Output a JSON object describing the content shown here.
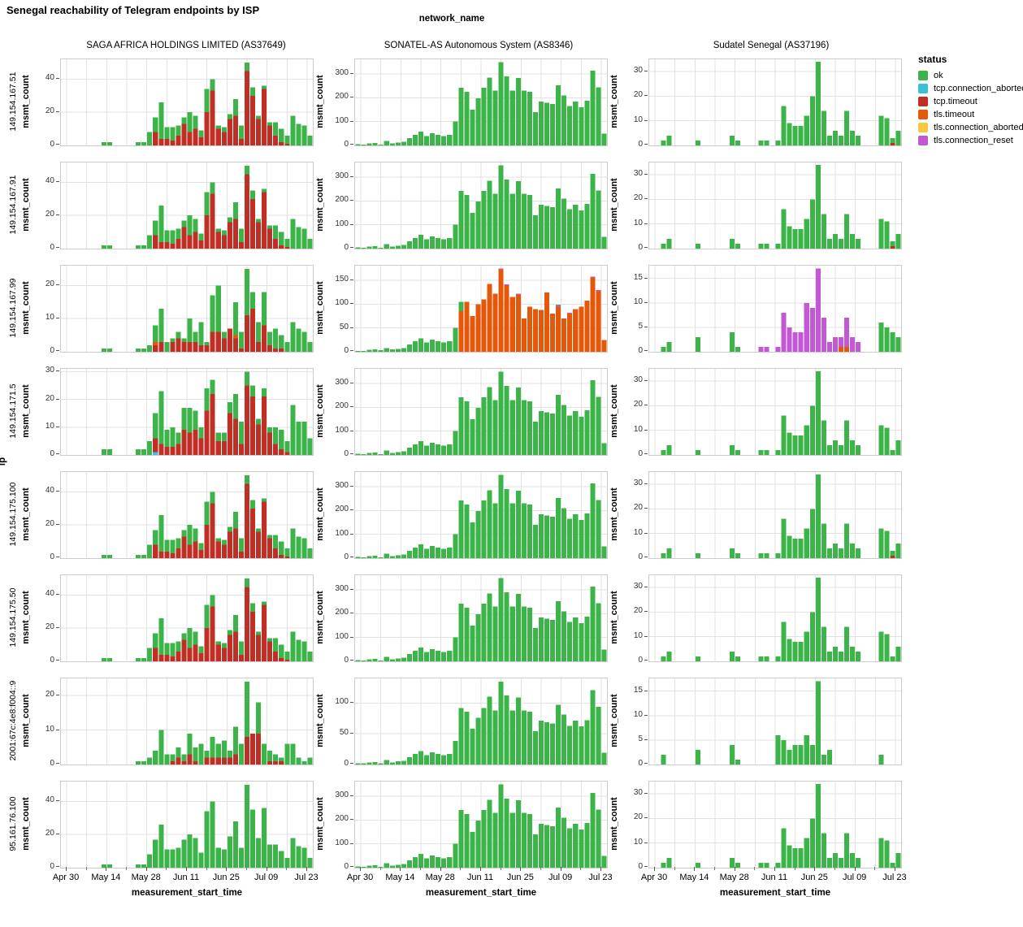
{
  "title": "Senegal reachability of Telegram endpoints by ISP",
  "outer": {
    "x_title": "network_name",
    "y_title": "ip"
  },
  "columns": [
    "SAGA AFRICA HOLDINGS LIMITED (AS37649)",
    "SONATEL-AS Autonomous System (AS8346)",
    "Sudatel Senegal (AS37196)"
  ],
  "rows": [
    "149.154.167.51",
    "149.154.167.91",
    "149.154.167.99",
    "149.154.171.5",
    "149.154.175.100",
    "149.154.175.50",
    "2001:67c:4e8:f004::9",
    "95.161.76.100"
  ],
  "x_ticks": [
    "Apr 30",
    "May 14",
    "May 28",
    "Jun 11",
    "Jun 25",
    "Jul 09",
    "Jul 23"
  ],
  "legend": {
    "title": "status",
    "items": [
      {
        "key": "ok",
        "label": "ok",
        "color": "#3cb44a"
      },
      {
        "key": "tcp_connection_aborted",
        "label": "tcp.connection_aborted",
        "color": "#3bc0d9"
      },
      {
        "key": "tcp_timeout",
        "label": "tcp.timeout",
        "color": "#bf2f26"
      },
      {
        "key": "tls_timeout",
        "label": "tls.timeout",
        "color": "#e55709"
      },
      {
        "key": "tls_connection_aborted",
        "label": "tls.connection_aborted",
        "color": "#fcc63c"
      },
      {
        "key": "tls_connection_reset",
        "label": "tls.connection_reset",
        "color": "#c258d3"
      }
    ]
  },
  "chart_data": {
    "type": "bar",
    "stacked": true,
    "x_axis_label": "measurement_start_time",
    "y_axis_label": "msmt_count",
    "n_bins": 44,
    "bin_days": 2,
    "span_days": 88,
    "bin_start": "Apr 28",
    "stack_order": [
      "tcp_connection_aborted",
      "tcp_timeout",
      "tls_timeout",
      "tls_connection_aborted",
      "tls_connection_reset",
      "ok"
    ],
    "x_grid_days": [
      2,
      9,
      16,
      23,
      30,
      37,
      44,
      51,
      58,
      65,
      72,
      79,
      86
    ],
    "x_tick_days": [
      2,
      16,
      30,
      44,
      58,
      72,
      86
    ],
    "x_minor_days": [
      9,
      23,
      37,
      51,
      65,
      79
    ],
    "profiles": {
      "saga_ok": [
        0,
        0,
        0,
        0,
        0,
        0,
        0,
        2,
        2,
        0,
        0,
        0,
        0,
        2,
        2,
        8,
        9,
        22,
        7,
        8,
        6,
        4,
        12,
        8,
        4,
        14,
        7,
        2,
        3,
        3,
        10,
        8,
        5,
        5,
        2,
        2,
        2,
        8,
        8,
        5,
        18,
        13,
        12,
        6
      ],
      "saga_tcp_timeout": [
        0,
        0,
        0,
        0,
        0,
        0,
        0,
        0,
        0,
        0,
        0,
        0,
        0,
        0,
        0,
        0,
        8,
        4,
        4,
        3,
        6,
        13,
        8,
        10,
        5,
        20,
        33,
        10,
        8,
        16,
        18,
        4,
        45,
        30,
        16,
        34,
        12,
        6,
        2,
        1,
        0,
        0,
        0,
        0
      ],
      "saga_all_ok": [
        0,
        0,
        0,
        0,
        0,
        0,
        0,
        2,
        2,
        0,
        0,
        0,
        0,
        2,
        2,
        8,
        17,
        26,
        11,
        11,
        12,
        17,
        20,
        18,
        9,
        34,
        40,
        12,
        11,
        19,
        28,
        12,
        50,
        35,
        18,
        36,
        14,
        14,
        10,
        6,
        18,
        13,
        12,
        6
      ],
      "saga4_ok": [
        0,
        0,
        0,
        0,
        0,
        0,
        0,
        2,
        2,
        0,
        0,
        0,
        0,
        2,
        2,
        5,
        9,
        19,
        6,
        7,
        4,
        8,
        9,
        7,
        4,
        8,
        5,
        3,
        3,
        4,
        9,
        8,
        5,
        4,
        2,
        3,
        2,
        6,
        7,
        4,
        18,
        12,
        12,
        6
      ],
      "saga4_tcp_timeout": [
        0,
        0,
        0,
        0,
        0,
        0,
        0,
        0,
        0,
        0,
        0,
        0,
        0,
        0,
        0,
        0,
        5,
        4,
        3,
        3,
        4,
        9,
        8,
        9,
        6,
        16,
        22,
        5,
        5,
        15,
        13,
        4,
        25,
        21,
        11,
        21,
        8,
        4,
        2,
        1,
        0,
        0,
        0,
        0
      ],
      "saga4_tcp_aborted": [
        0,
        0,
        0,
        0,
        0,
        0,
        0,
        0,
        0,
        0,
        0,
        0,
        0,
        0,
        0,
        0,
        1,
        0,
        0,
        0,
        0,
        0,
        0,
        0,
        0,
        0,
        0,
        0,
        0,
        0,
        0,
        0,
        0,
        0,
        0,
        0,
        0,
        0,
        0,
        0,
        0,
        0,
        0,
        0
      ],
      "saga3_ok": [
        0,
        0,
        0,
        0,
        0,
        0,
        0,
        1,
        1,
        0,
        0,
        0,
        0,
        1,
        1,
        2,
        5,
        10,
        3,
        1,
        2,
        1,
        7,
        3,
        7,
        1,
        11,
        14,
        2,
        0,
        10,
        5,
        14,
        5,
        6,
        10,
        4,
        6,
        4,
        3,
        9,
        7,
        6,
        3
      ],
      "saga3_tcp_timeout": [
        0,
        0,
        0,
        0,
        0,
        0,
        0,
        0,
        0,
        0,
        0,
        0,
        0,
        0,
        0,
        0,
        2,
        3,
        0,
        3,
        4,
        3,
        3,
        3,
        2,
        2,
        6,
        6,
        4,
        7,
        4,
        1,
        11,
        13,
        3,
        8,
        2,
        1,
        1,
        0,
        0,
        0,
        0,
        0
      ],
      "saga3_tls_timeout": [
        0,
        0,
        0,
        0,
        0,
        0,
        0,
        0,
        0,
        0,
        0,
        0,
        0,
        0,
        0,
        0,
        1,
        0,
        0,
        0,
        0,
        0,
        0,
        0,
        0,
        0,
        0,
        0,
        0,
        0,
        1,
        0,
        0,
        0,
        0,
        0,
        0,
        0,
        0,
        0,
        0,
        0,
        0,
        0
      ],
      "saga7_ok": [
        0,
        0,
        0,
        0,
        0,
        0,
        0,
        0,
        0,
        0,
        0,
        0,
        0,
        1,
        1,
        2,
        4,
        10,
        3,
        2,
        3,
        2,
        6,
        4,
        6,
        2,
        6,
        4,
        5,
        2,
        8,
        6,
        16,
        0,
        9,
        6,
        3,
        2,
        1,
        6,
        6,
        2,
        1,
        2
      ],
      "saga7_tcp_timeout": [
        0,
        0,
        0,
        0,
        0,
        0,
        0,
        0,
        0,
        0,
        0,
        0,
        0,
        0,
        0,
        0,
        0,
        0,
        0,
        1,
        2,
        1,
        3,
        1,
        0,
        2,
        2,
        2,
        2,
        2,
        3,
        0,
        8,
        9,
        9,
        0,
        1,
        1,
        1,
        0,
        0,
        0,
        0,
        0
      ],
      "sonatel_ok": [
        5,
        4,
        8,
        10,
        4,
        18,
        8,
        12,
        15,
        30,
        45,
        58,
        40,
        52,
        45,
        40,
        45,
        100,
        242,
        225,
        150,
        198,
        242,
        285,
        230,
        350,
        290,
        230,
        283,
        230,
        225,
        140,
        185,
        180,
        175,
        253,
        210,
        165,
        185,
        160,
        188,
        315,
        245,
        50
      ],
      "sonatel7_ok": [
        2,
        2,
        3,
        4,
        2,
        7,
        3,
        5,
        6,
        12,
        17,
        22,
        15,
        20,
        17,
        15,
        17,
        38,
        92,
        86,
        58,
        76,
        92,
        110,
        88,
        135,
        112,
        88,
        109,
        88,
        86,
        54,
        71,
        69,
        67,
        97,
        81,
        63,
        71,
        62,
        72,
        121,
        94,
        19
      ],
      "sonatel3_ok": [
        2,
        2,
        4,
        5,
        3,
        8,
        5,
        6,
        8,
        15,
        22,
        28,
        20,
        26,
        22,
        20,
        22,
        50,
        20,
        0,
        0,
        0,
        0,
        0,
        0,
        0,
        0,
        0,
        0,
        0,
        0,
        0,
        0,
        0,
        0,
        2,
        0,
        0,
        0,
        0,
        0,
        0,
        0,
        0
      ],
      "sonatel3_tls_timeout": [
        0,
        0,
        0,
        0,
        0,
        0,
        0,
        0,
        0,
        0,
        0,
        0,
        0,
        0,
        0,
        0,
        0,
        0,
        85,
        105,
        75,
        100,
        110,
        143,
        122,
        173,
        140,
        115,
        120,
        70,
        95,
        90,
        88,
        125,
        80,
        95,
        70,
        80,
        90,
        95,
        108,
        156,
        128,
        25
      ],
      "sonatel3_tls_reset": [
        0,
        0,
        0,
        0,
        0,
        0,
        0,
        0,
        0,
        0,
        0,
        0,
        0,
        0,
        0,
        0,
        0,
        0,
        0,
        0,
        0,
        0,
        0,
        0,
        0,
        2,
        2,
        0,
        2,
        0,
        0,
        0,
        0,
        0,
        0,
        2,
        0,
        2,
        0,
        0,
        0,
        2,
        2,
        0
      ],
      "sudatel_ok": [
        0,
        0,
        2,
        4,
        0,
        0,
        0,
        0,
        2,
        0,
        0,
        0,
        0,
        0,
        4,
        2,
        0,
        0,
        0,
        2,
        2,
        0,
        2,
        16,
        9,
        8,
        8,
        12,
        20,
        34,
        14,
        4,
        6,
        4,
        14,
        6,
        4,
        0,
        0,
        0,
        12,
        11,
        2,
        6
      ],
      "sudatel_tcp_timeout": [
        0,
        0,
        0,
        0,
        0,
        0,
        0,
        0,
        0,
        0,
        0,
        0,
        0,
        0,
        0,
        0,
        0,
        0,
        0,
        0,
        0,
        0,
        0,
        0,
        0,
        0,
        0,
        0,
        0,
        0,
        0,
        0,
        0,
        0,
        0,
        0,
        0,
        0,
        0,
        0,
        0,
        0,
        1,
        0
      ],
      "sudatel3_ok": [
        0,
        0,
        1,
        2,
        0,
        0,
        0,
        0,
        3,
        0,
        0,
        0,
        0,
        0,
        4,
        1,
        0,
        0,
        0,
        0,
        0,
        0,
        0,
        0,
        0,
        0,
        0,
        0,
        0,
        0,
        0,
        0,
        0,
        0,
        0,
        0,
        0,
        0,
        0,
        0,
        6,
        5,
        4,
        3
      ],
      "sudatel3_tls_reset": [
        0,
        0,
        0,
        0,
        0,
        0,
        0,
        0,
        0,
        0,
        0,
        0,
        0,
        0,
        0,
        0,
        0,
        0,
        0,
        1,
        1,
        0,
        1,
        8,
        5,
        4,
        4,
        10,
        9,
        17,
        7,
        2,
        3,
        2,
        6,
        3,
        2,
        0,
        0,
        0,
        0,
        0,
        0,
        0
      ],
      "sudatel3_tls_timeout": [
        0,
        0,
        0,
        0,
        0,
        0,
        0,
        0,
        0,
        0,
        0,
        0,
        0,
        0,
        0,
        0,
        0,
        0,
        0,
        0,
        0,
        0,
        0,
        0,
        0,
        0,
        0,
        0,
        0,
        0,
        0,
        0,
        0,
        1,
        1,
        0,
        0,
        0,
        0,
        0,
        0,
        0,
        0,
        0
      ],
      "sudatel7_ok": [
        0,
        0,
        2,
        0,
        0,
        0,
        0,
        0,
        3,
        0,
        0,
        0,
        0,
        0,
        4,
        1,
        0,
        0,
        0,
        0,
        0,
        0,
        6,
        5,
        3,
        4,
        4,
        6,
        4,
        17,
        2,
        3,
        0,
        0,
        0,
        0,
        0,
        0,
        0,
        0,
        2,
        0,
        0,
        0
      ]
    },
    "facets": [
      {
        "row": 0,
        "col": 0,
        "y_max": 52,
        "y_ticks": [
          0,
          20,
          40
        ],
        "series": {
          "ok": "saga_ok",
          "tcp_timeout": "saga_tcp_timeout"
        }
      },
      {
        "row": 0,
        "col": 1,
        "y_max": 362,
        "y_ticks": [
          0,
          100,
          200,
          300
        ],
        "series": {
          "ok": "sonatel_ok"
        }
      },
      {
        "row": 0,
        "col": 2,
        "y_max": 35,
        "y_ticks": [
          0,
          10,
          20,
          30
        ],
        "series": {
          "ok": "sudatel_ok",
          "tcp_timeout": "sudatel_tcp_timeout"
        }
      },
      {
        "row": 1,
        "col": 0,
        "y_max": 52,
        "y_ticks": [
          0,
          20,
          40
        ],
        "series": {
          "ok": "saga_ok",
          "tcp_timeout": "saga_tcp_timeout"
        }
      },
      {
        "row": 1,
        "col": 1,
        "y_max": 362,
        "y_ticks": [
          0,
          100,
          200,
          300
        ],
        "series": {
          "ok": "sonatel_ok"
        }
      },
      {
        "row": 1,
        "col": 2,
        "y_max": 35,
        "y_ticks": [
          0,
          10,
          20,
          30
        ],
        "series": {
          "ok": "sudatel_ok",
          "tcp_timeout": "sudatel_tcp_timeout"
        }
      },
      {
        "row": 2,
        "col": 0,
        "y_max": 26,
        "y_ticks": [
          0,
          10,
          20
        ],
        "series": {
          "ok": "saga3_ok",
          "tcp_timeout": "saga3_tcp_timeout",
          "tls_timeout": "saga3_tls_timeout"
        }
      },
      {
        "row": 2,
        "col": 1,
        "y_max": 181,
        "y_ticks": [
          0,
          50,
          100,
          150
        ],
        "series": {
          "ok": "sonatel3_ok",
          "tls_timeout": "sonatel3_tls_timeout",
          "tls_connection_reset": "sonatel3_tls_reset"
        }
      },
      {
        "row": 2,
        "col": 2,
        "y_max": 17.6,
        "y_ticks": [
          0,
          5,
          10,
          15
        ],
        "series": {
          "ok": "sudatel3_ok",
          "tls_timeout": "sudatel3_tls_timeout",
          "tls_connection_reset": "sudatel3_tls_reset"
        }
      },
      {
        "row": 3,
        "col": 0,
        "y_max": 31,
        "y_ticks": [
          0,
          10,
          20,
          30
        ],
        "series": {
          "ok": "saga4_ok",
          "tcp_timeout": "saga4_tcp_timeout",
          "tcp_connection_aborted": "saga4_tcp_aborted"
        }
      },
      {
        "row": 3,
        "col": 1,
        "y_max": 362,
        "y_ticks": [
          0,
          100,
          200,
          300
        ],
        "series": {
          "ok": "sonatel_ok"
        }
      },
      {
        "row": 3,
        "col": 2,
        "y_max": 35,
        "y_ticks": [
          0,
          10,
          20,
          30
        ],
        "series": {
          "ok": "sudatel_ok"
        }
      },
      {
        "row": 4,
        "col": 0,
        "y_max": 52,
        "y_ticks": [
          0,
          20,
          40
        ],
        "series": {
          "ok": "saga_ok",
          "tcp_timeout": "saga_tcp_timeout"
        }
      },
      {
        "row": 4,
        "col": 1,
        "y_max": 362,
        "y_ticks": [
          0,
          100,
          200,
          300
        ],
        "series": {
          "ok": "sonatel_ok"
        }
      },
      {
        "row": 4,
        "col": 2,
        "y_max": 35,
        "y_ticks": [
          0,
          10,
          20,
          30
        ],
        "series": {
          "ok": "sudatel_ok",
          "tcp_timeout": "sudatel_tcp_timeout"
        }
      },
      {
        "row": 5,
        "col": 0,
        "y_max": 52,
        "y_ticks": [
          0,
          20,
          40
        ],
        "series": {
          "ok": "saga_ok",
          "tcp_timeout": "saga_tcp_timeout"
        }
      },
      {
        "row": 5,
        "col": 1,
        "y_max": 362,
        "y_ticks": [
          0,
          100,
          200,
          300
        ],
        "series": {
          "ok": "sonatel_ok"
        }
      },
      {
        "row": 5,
        "col": 2,
        "y_max": 35,
        "y_ticks": [
          0,
          10,
          20,
          30
        ],
        "series": {
          "ok": "sudatel_ok"
        }
      },
      {
        "row": 6,
        "col": 0,
        "y_max": 25,
        "y_ticks": [
          0,
          10,
          20
        ],
        "series": {
          "ok": "saga7_ok",
          "tcp_timeout": "saga7_tcp_timeout"
        }
      },
      {
        "row": 6,
        "col": 1,
        "y_max": 140,
        "y_ticks": [
          0,
          50,
          100
        ],
        "series": {
          "ok": "sonatel7_ok"
        }
      },
      {
        "row": 6,
        "col": 2,
        "y_max": 17.6,
        "y_ticks": [
          0,
          5,
          10,
          15
        ],
        "series": {
          "ok": "sudatel7_ok"
        }
      },
      {
        "row": 7,
        "col": 0,
        "y_max": 52,
        "y_ticks": [
          0,
          20,
          40
        ],
        "series": {
          "ok": "saga_all_ok"
        }
      },
      {
        "row": 7,
        "col": 1,
        "y_max": 362,
        "y_ticks": [
          0,
          100,
          200,
          300
        ],
        "series": {
          "ok": "sonatel_ok"
        }
      },
      {
        "row": 7,
        "col": 2,
        "y_max": 35,
        "y_ticks": [
          0,
          10,
          20,
          30
        ],
        "series": {
          "ok": "sudatel_ok"
        }
      }
    ]
  }
}
